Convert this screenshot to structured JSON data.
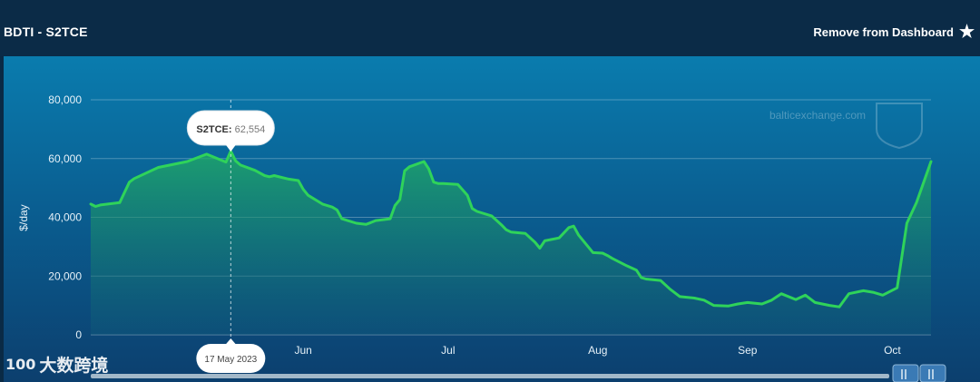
{
  "header": {
    "title": "BDTI - S2TCE",
    "remove_label": "Remove from Dashboard",
    "star_icon": "star-icon"
  },
  "watermark": {
    "site": "balticexchange.com",
    "brand_text": "大数跨境",
    "brand_logo_text": "100"
  },
  "tooltip": {
    "series": "S2TCE",
    "value": "62,554",
    "date": "17 May 2023"
  },
  "colors": {
    "line": "#2fd35a",
    "tooltip_bg": "#ffffff",
    "accent": "#0a7cae"
  },
  "chart_data": {
    "type": "area",
    "title": "",
    "xlabel": "",
    "ylabel": "$/day",
    "ylim": [
      0,
      80000
    ],
    "yticks": [
      "0",
      "20,000",
      "40,000",
      "60,000",
      "80,000"
    ],
    "ytick_values": [
      0,
      20000,
      40000,
      60000,
      80000
    ],
    "xticks": [
      "Jun",
      "Jul",
      "Aug",
      "Sep",
      "Oct"
    ],
    "xtick_dates": [
      "2023-06-01",
      "2023-07-01",
      "2023-08-01",
      "2023-09-01",
      "2023-10-01"
    ],
    "grid": true,
    "legend": "none",
    "series": [
      {
        "name": "S2TCE",
        "x": [
          "2023-04-18",
          "2023-04-19",
          "2023-04-20",
          "2023-04-24",
          "2023-04-26",
          "2023-04-27",
          "2023-05-02",
          "2023-05-08",
          "2023-05-12",
          "2023-05-16",
          "2023-05-17",
          "2023-05-18",
          "2023-05-19",
          "2023-05-22",
          "2023-05-24",
          "2023-05-25",
          "2023-05-26",
          "2023-05-29",
          "2023-05-31",
          "2023-06-01",
          "2023-06-02",
          "2023-06-05",
          "2023-06-07",
          "2023-06-08",
          "2023-06-09",
          "2023-06-12",
          "2023-06-14",
          "2023-06-15",
          "2023-06-16",
          "2023-06-19",
          "2023-06-20",
          "2023-06-21",
          "2023-06-22",
          "2023-06-23",
          "2023-06-26",
          "2023-06-27",
          "2023-06-28",
          "2023-06-29",
          "2023-06-30",
          "2023-07-03",
          "2023-07-05",
          "2023-07-06",
          "2023-07-07",
          "2023-07-10",
          "2023-07-12",
          "2023-07-13",
          "2023-07-14",
          "2023-07-17",
          "2023-07-19",
          "2023-07-20",
          "2023-07-21",
          "2023-07-24",
          "2023-07-26",
          "2023-07-27",
          "2023-07-28",
          "2023-07-31",
          "2023-08-02",
          "2023-08-03",
          "2023-08-04",
          "2023-08-07",
          "2023-08-09",
          "2023-08-10",
          "2023-08-11",
          "2023-08-14",
          "2023-08-16",
          "2023-08-18",
          "2023-08-21",
          "2023-08-23",
          "2023-08-25",
          "2023-08-28",
          "2023-08-30",
          "2023-09-01",
          "2023-09-04",
          "2023-09-06",
          "2023-09-08",
          "2023-09-11",
          "2023-09-13",
          "2023-09-15",
          "2023-09-18",
          "2023-09-20",
          "2023-09-22",
          "2023-09-25",
          "2023-09-27",
          "2023-09-29",
          "2023-10-02",
          "2023-10-04",
          "2023-10-06",
          "2023-10-09"
        ],
        "values": [
          44500,
          43700,
          44200,
          45000,
          52000,
          53200,
          57000,
          59000,
          61500,
          58800,
          62554,
          59200,
          57800,
          56000,
          54200,
          53800,
          54200,
          53000,
          52500,
          49500,
          47500,
          44500,
          43500,
          42500,
          39500,
          38000,
          37600,
          38200,
          38900,
          39500,
          44000,
          46000,
          55800,
          57200,
          59000,
          56500,
          52000,
          51500,
          51500,
          51200,
          47500,
          43000,
          42000,
          40500,
          37500,
          35800,
          35000,
          34500,
          31500,
          29500,
          32000,
          33000,
          36500,
          37000,
          34000,
          28000,
          27800,
          27000,
          26000,
          23500,
          22000,
          19500,
          19000,
          18500,
          15500,
          13000,
          12500,
          11800,
          10000,
          9800,
          10500,
          11000,
          10500,
          11800,
          14000,
          12000,
          13500,
          11000,
          10000,
          9500,
          14000,
          15000,
          14500,
          13500,
          16000,
          38000,
          45000,
          59000
        ]
      }
    ]
  }
}
